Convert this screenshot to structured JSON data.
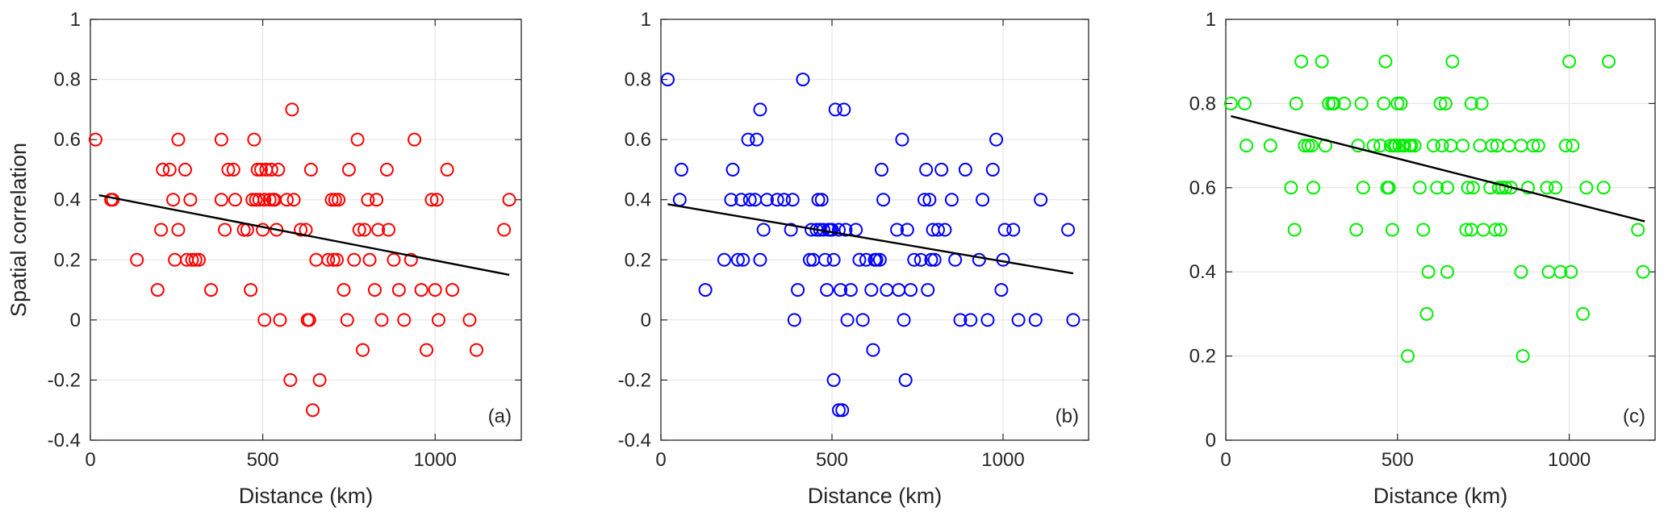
{
  "chart_data": [
    {
      "type": "scatter",
      "panel_label": "(a)",
      "xlabel": "Distance (km)",
      "ylabel": "Spatial correlation",
      "xlim": [
        0,
        1250
      ],
      "ylim": [
        -0.4,
        1
      ],
      "xticks": [
        0,
        500,
        1000
      ],
      "xtick_labels": [
        "0",
        "500",
        "1000"
      ],
      "yticks": [
        -0.4,
        -0.2,
        0,
        0.2,
        0.4,
        0.6,
        0.8,
        1
      ],
      "ytick_labels": [
        "-0.4",
        "-0.2",
        "0",
        "0.2",
        "0.4",
        "0.6",
        "0.8",
        "1"
      ],
      "grid": true,
      "marker_color": "#ff0000",
      "fit_line": {
        "x": [
          25,
          1215
        ],
        "y": [
          0.415,
          0.15
        ],
        "color": "#000000"
      },
      "points": [
        [
          15,
          0.6
        ],
        [
          60,
          0.4
        ],
        [
          65,
          0.4
        ],
        [
          135,
          0.2
        ],
        [
          195,
          0.1
        ],
        [
          205,
          0.3
        ],
        [
          210,
          0.5
        ],
        [
          230,
          0.5
        ],
        [
          240,
          0.4
        ],
        [
          245,
          0.2
        ],
        [
          255,
          0.3
        ],
        [
          255,
          0.6
        ],
        [
          275,
          0.5
        ],
        [
          280,
          0.2
        ],
        [
          290,
          0.4
        ],
        [
          295,
          0.2
        ],
        [
          305,
          0.2
        ],
        [
          315,
          0.2
        ],
        [
          350,
          0.1
        ],
        [
          380,
          0.6
        ],
        [
          380,
          0.4
        ],
        [
          390,
          0.3
        ],
        [
          400,
          0.5
        ],
        [
          415,
          0.5
        ],
        [
          420,
          0.4
        ],
        [
          445,
          0.3
        ],
        [
          455,
          0.3
        ],
        [
          465,
          0.1
        ],
        [
          470,
          0.4
        ],
        [
          475,
          0.6
        ],
        [
          480,
          0.4
        ],
        [
          485,
          0.5
        ],
        [
          490,
          0.4
        ],
        [
          495,
          0.5
        ],
        [
          500,
          0.3
        ],
        [
          505,
          0.4
        ],
        [
          505,
          0.0
        ],
        [
          510,
          0.5
        ],
        [
          520,
          0.4
        ],
        [
          525,
          0.5
        ],
        [
          530,
          0.4
        ],
        [
          535,
          0.4
        ],
        [
          540,
          0.3
        ],
        [
          545,
          0.5
        ],
        [
          550,
          0.0
        ],
        [
          570,
          0.4
        ],
        [
          580,
          -0.2
        ],
        [
          585,
          0.7
        ],
        [
          590,
          0.4
        ],
        [
          610,
          0.3
        ],
        [
          625,
          0.3
        ],
        [
          630,
          0.0
        ],
        [
          635,
          0.0
        ],
        [
          640,
          0.5
        ],
        [
          645,
          -0.3
        ],
        [
          655,
          0.2
        ],
        [
          665,
          -0.2
        ],
        [
          690,
          0.2
        ],
        [
          700,
          0.4
        ],
        [
          705,
          0.2
        ],
        [
          710,
          0.4
        ],
        [
          715,
          0.2
        ],
        [
          720,
          0.4
        ],
        [
          735,
          0.1
        ],
        [
          745,
          0.0
        ],
        [
          750,
          0.5
        ],
        [
          765,
          0.2
        ],
        [
          775,
          0.6
        ],
        [
          780,
          0.3
        ],
        [
          790,
          -0.1
        ],
        [
          795,
          0.3
        ],
        [
          805,
          0.4
        ],
        [
          810,
          0.2
        ],
        [
          825,
          0.1
        ],
        [
          830,
          0.4
        ],
        [
          835,
          0.3
        ],
        [
          845,
          0.0
        ],
        [
          860,
          0.5
        ],
        [
          865,
          0.3
        ],
        [
          880,
          0.2
        ],
        [
          895,
          0.1
        ],
        [
          910,
          0.0
        ],
        [
          930,
          0.2
        ],
        [
          940,
          0.6
        ],
        [
          960,
          0.1
        ],
        [
          975,
          -0.1
        ],
        [
          990,
          0.4
        ],
        [
          1000,
          0.1
        ],
        [
          1005,
          0.4
        ],
        [
          1010,
          0.0
        ],
        [
          1035,
          0.5
        ],
        [
          1050,
          0.1
        ],
        [
          1100,
          0.0
        ],
        [
          1120,
          -0.1
        ],
        [
          1200,
          0.3
        ],
        [
          1215,
          0.4
        ]
      ]
    },
    {
      "type": "scatter",
      "panel_label": "(b)",
      "xlabel": "Distance (km)",
      "ylabel": "",
      "xlim": [
        0,
        1250
      ],
      "ylim": [
        -0.4,
        1
      ],
      "xticks": [
        0,
        500,
        1000
      ],
      "xtick_labels": [
        "0",
        "500",
        "1000"
      ],
      "yticks": [
        -0.4,
        -0.2,
        0,
        0.2,
        0.4,
        0.6,
        0.8,
        1
      ],
      "ytick_labels": [
        "-0.4",
        "-0.2",
        "0",
        "0.2",
        "0.4",
        "0.6",
        "0.8",
        "1"
      ],
      "grid": true,
      "marker_color": "#0000ff",
      "fit_line": {
        "x": [
          20,
          1205
        ],
        "y": [
          0.385,
          0.155
        ],
        "color": "#000000"
      },
      "points": [
        [
          20,
          0.8
        ],
        [
          55,
          0.4
        ],
        [
          60,
          0.5
        ],
        [
          130,
          0.1
        ],
        [
          185,
          0.2
        ],
        [
          205,
          0.4
        ],
        [
          210,
          0.5
        ],
        [
          225,
          0.2
        ],
        [
          235,
          0.4
        ],
        [
          240,
          0.2
        ],
        [
          255,
          0.6
        ],
        [
          260,
          0.4
        ],
        [
          275,
          0.4
        ],
        [
          280,
          0.6
        ],
        [
          290,
          0.7
        ],
        [
          290,
          0.2
        ],
        [
          300,
          0.3
        ],
        [
          310,
          0.4
        ],
        [
          340,
          0.4
        ],
        [
          360,
          0.4
        ],
        [
          380,
          0.3
        ],
        [
          385,
          0.4
        ],
        [
          390,
          0.0
        ],
        [
          400,
          0.1
        ],
        [
          415,
          0.8
        ],
        [
          435,
          0.2
        ],
        [
          440,
          0.3
        ],
        [
          445,
          0.2
        ],
        [
          455,
          0.3
        ],
        [
          460,
          0.4
        ],
        [
          465,
          0.3
        ],
        [
          470,
          0.4
        ],
        [
          475,
          0.3
        ],
        [
          480,
          0.2
        ],
        [
          485,
          0.1
        ],
        [
          490,
          0.3
        ],
        [
          495,
          0.3
        ],
        [
          500,
          0.3
        ],
        [
          505,
          0.2
        ],
        [
          505,
          -0.2
        ],
        [
          510,
          0.7
        ],
        [
          520,
          0.3
        ],
        [
          520,
          -0.3
        ],
        [
          525,
          0.1
        ],
        [
          530,
          -0.3
        ],
        [
          535,
          0.7
        ],
        [
          540,
          0.3
        ],
        [
          545,
          0.0
        ],
        [
          555,
          0.1
        ],
        [
          570,
          0.3
        ],
        [
          580,
          0.2
        ],
        [
          590,
          0.0
        ],
        [
          600,
          0.2
        ],
        [
          615,
          0.1
        ],
        [
          620,
          -0.1
        ],
        [
          625,
          0.2
        ],
        [
          630,
          0.2
        ],
        [
          640,
          0.2
        ],
        [
          645,
          0.5
        ],
        [
          650,
          0.4
        ],
        [
          660,
          0.1
        ],
        [
          690,
          0.3
        ],
        [
          695,
          0.1
        ],
        [
          705,
          0.6
        ],
        [
          710,
          0.0
        ],
        [
          715,
          -0.2
        ],
        [
          720,
          0.3
        ],
        [
          730,
          0.1
        ],
        [
          740,
          0.2
        ],
        [
          760,
          0.2
        ],
        [
          770,
          0.4
        ],
        [
          775,
          0.5
        ],
        [
          780,
          0.1
        ],
        [
          785,
          0.4
        ],
        [
          790,
          0.2
        ],
        [
          795,
          0.3
        ],
        [
          800,
          0.2
        ],
        [
          810,
          0.3
        ],
        [
          820,
          0.5
        ],
        [
          830,
          0.3
        ],
        [
          850,
          0.4
        ],
        [
          860,
          0.2
        ],
        [
          875,
          0.0
        ],
        [
          890,
          0.5
        ],
        [
          905,
          0.0
        ],
        [
          930,
          0.2
        ],
        [
          940,
          0.4
        ],
        [
          955,
          0.0
        ],
        [
          970,
          0.5
        ],
        [
          980,
          0.6
        ],
        [
          995,
          0.1
        ],
        [
          1000,
          0.2
        ],
        [
          1005,
          0.3
        ],
        [
          1030,
          0.3
        ],
        [
          1045,
          0.0
        ],
        [
          1095,
          0.0
        ],
        [
          1110,
          0.4
        ],
        [
          1190,
          0.3
        ],
        [
          1205,
          0.0
        ]
      ]
    },
    {
      "type": "scatter",
      "panel_label": "(c)",
      "xlabel": "Distance (km)",
      "ylabel": "",
      "xlim": [
        0,
        1250
      ],
      "ylim": [
        0,
        1
      ],
      "xticks": [
        0,
        500,
        1000
      ],
      "xtick_labels": [
        "0",
        "500",
        "1000"
      ],
      "yticks": [
        0,
        0.2,
        0.4,
        0.6,
        0.8,
        1
      ],
      "ytick_labels": [
        "0",
        "0.2",
        "0.4",
        "0.6",
        "0.8",
        "1"
      ],
      "grid": true,
      "marker_color": "#00ee00",
      "fit_line": {
        "x": [
          15,
          1220
        ],
        "y": [
          0.77,
          0.52
        ],
        "color": "#000000"
      },
      "points": [
        [
          15,
          0.8
        ],
        [
          55,
          0.8
        ],
        [
          60,
          0.7
        ],
        [
          130,
          0.7
        ],
        [
          190,
          0.6
        ],
        [
          200,
          0.5
        ],
        [
          205,
          0.8
        ],
        [
          220,
          0.9
        ],
        [
          230,
          0.7
        ],
        [
          240,
          0.7
        ],
        [
          250,
          0.7
        ],
        [
          255,
          0.6
        ],
        [
          280,
          0.9
        ],
        [
          290,
          0.7
        ],
        [
          300,
          0.8
        ],
        [
          310,
          0.8
        ],
        [
          315,
          0.8
        ],
        [
          345,
          0.8
        ],
        [
          380,
          0.5
        ],
        [
          385,
          0.7
        ],
        [
          395,
          0.8
        ],
        [
          400,
          0.6
        ],
        [
          430,
          0.7
        ],
        [
          450,
          0.7
        ],
        [
          460,
          0.8
        ],
        [
          465,
          0.9
        ],
        [
          470,
          0.6
        ],
        [
          475,
          0.6
        ],
        [
          480,
          0.7
        ],
        [
          485,
          0.5
        ],
        [
          490,
          0.7
        ],
        [
          495,
          0.7
        ],
        [
          500,
          0.8
        ],
        [
          505,
          0.7
        ],
        [
          510,
          0.8
        ],
        [
          515,
          0.7
        ],
        [
          520,
          0.7
        ],
        [
          530,
          0.2
        ],
        [
          535,
          0.7
        ],
        [
          540,
          0.7
        ],
        [
          550,
          0.7
        ],
        [
          565,
          0.6
        ],
        [
          575,
          0.5
        ],
        [
          585,
          0.3
        ],
        [
          590,
          0.4
        ],
        [
          605,
          0.7
        ],
        [
          615,
          0.6
        ],
        [
          625,
          0.8
        ],
        [
          630,
          0.7
        ],
        [
          640,
          0.8
        ],
        [
          645,
          0.4
        ],
        [
          645,
          0.6
        ],
        [
          655,
          0.7
        ],
        [
          660,
          0.9
        ],
        [
          690,
          0.7
        ],
        [
          700,
          0.5
        ],
        [
          705,
          0.6
        ],
        [
          715,
          0.8
        ],
        [
          715,
          0.5
        ],
        [
          720,
          0.6
        ],
        [
          740,
          0.7
        ],
        [
          745,
          0.8
        ],
        [
          750,
          0.5
        ],
        [
          770,
          0.6
        ],
        [
          775,
          0.7
        ],
        [
          785,
          0.5
        ],
        [
          790,
          0.7
        ],
        [
          795,
          0.6
        ],
        [
          800,
          0.5
        ],
        [
          805,
          0.6
        ],
        [
          815,
          0.6
        ],
        [
          825,
          0.7
        ],
        [
          830,
          0.6
        ],
        [
          860,
          0.4
        ],
        [
          860,
          0.7
        ],
        [
          865,
          0.2
        ],
        [
          880,
          0.6
        ],
        [
          895,
          0.7
        ],
        [
          910,
          0.7
        ],
        [
          935,
          0.6
        ],
        [
          940,
          0.4
        ],
        [
          960,
          0.6
        ],
        [
          975,
          0.4
        ],
        [
          990,
          0.7
        ],
        [
          1000,
          0.9
        ],
        [
          1005,
          0.4
        ],
        [
          1010,
          0.7
        ],
        [
          1040,
          0.3
        ],
        [
          1050,
          0.6
        ],
        [
          1100,
          0.6
        ],
        [
          1115,
          0.9
        ],
        [
          1200,
          0.5
        ],
        [
          1215,
          0.4
        ]
      ]
    }
  ]
}
